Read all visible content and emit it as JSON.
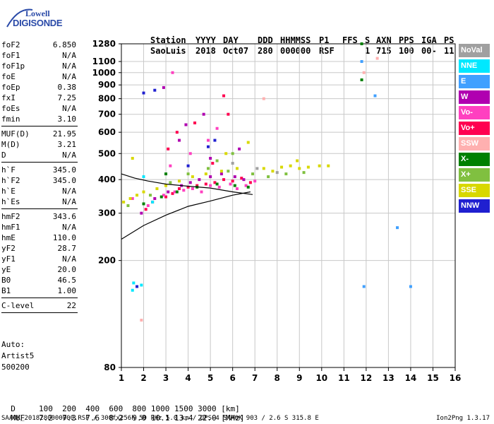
{
  "logo": {
    "line1": "Lowell",
    "line2": "DIGISONDE"
  },
  "header": {
    "col1": [
      "Station",
      "SaoLuis"
    ],
    "col2": [
      "YYYY",
      "2018"
    ],
    "col3": [
      "DAY",
      "Oct07"
    ],
    "col4": [
      "DDD",
      "280"
    ],
    "col5": [
      "HHMMSS",
      "000000"
    ],
    "col6": [
      "P1",
      "RSF"
    ],
    "col7": [
      "FFS",
      ""
    ],
    "col8": [
      "S",
      "1"
    ],
    "col9": [
      "AXN",
      "715"
    ],
    "col10": [
      "PPS",
      "100"
    ],
    "col11": [
      "IGA",
      "00-"
    ],
    "col12": [
      "PS",
      "11"
    ]
  },
  "params": {
    "group1": [
      {
        "name": "foF2",
        "value": "6.850"
      },
      {
        "name": "foF1",
        "value": "N/A"
      },
      {
        "name": "foF1p",
        "value": "N/A"
      },
      {
        "name": "foE",
        "value": "N/A"
      },
      {
        "name": "foEp",
        "value": "0.38"
      },
      {
        "name": "fxI",
        "value": "7.25"
      },
      {
        "name": "foEs",
        "value": "N/A"
      },
      {
        "name": "fmin",
        "value": "3.10"
      }
    ],
    "group2": [
      {
        "name": "MUF(D)",
        "value": "21.95"
      },
      {
        "name": "M(D)",
        "value": "3.21"
      },
      {
        "name": "D",
        "value": "N/A"
      }
    ],
    "group3": [
      {
        "name": "h`F",
        "value": "345.0"
      },
      {
        "name": "h`F2",
        "value": "345.0"
      },
      {
        "name": "h`E",
        "value": "N/A"
      },
      {
        "name": "h`Es",
        "value": "N/A"
      }
    ],
    "group4": [
      {
        "name": "hmF2",
        "value": "343.6"
      },
      {
        "name": "hmF1",
        "value": "N/A"
      },
      {
        "name": "hmE",
        "value": "110.0"
      },
      {
        "name": "yF2",
        "value": "28.7"
      },
      {
        "name": "yF1",
        "value": "N/A"
      },
      {
        "name": "yE",
        "value": "20.0"
      },
      {
        "name": "B0",
        "value": "46.5"
      },
      {
        "name": "B1",
        "value": "1.00"
      }
    ],
    "group5": [
      {
        "name": "C-level",
        "value": "22"
      }
    ]
  },
  "autoscale": {
    "line1": "Auto:",
    "line2": "Artist5",
    "line3": "500200"
  },
  "legend": [
    {
      "label": "NoVal",
      "color": "#a0a0a0"
    },
    {
      "label": "NNE",
      "color": "#00e8ff"
    },
    {
      "label": "E",
      "color": "#40a0ff"
    },
    {
      "label": "W",
      "color": "#b000b0"
    },
    {
      "label": "Vo-",
      "color": "#ff40c0"
    },
    {
      "label": "Vo+",
      "color": "#ff0050"
    },
    {
      "label": "SSW",
      "color": "#ffb0b0"
    },
    {
      "label": "X-",
      "color": "#008000"
    },
    {
      "label": "X+",
      "color": "#80c040"
    },
    {
      "label": "SSE",
      "color": "#d8d800"
    },
    {
      "label": "NNW",
      "color": "#2020d0"
    }
  ],
  "footer": {
    "row_d_label": "D",
    "row_d_values": [
      "100",
      "200",
      "400",
      "600",
      "800",
      "1000",
      "1500",
      "3000",
      "[km]"
    ],
    "row_muf_label": "MUF",
    "row_muf_values": [
      "7.2",
      "7.3",
      "7.6",
      "8.2",
      "9.0",
      "10.1",
      "13.4",
      "22.0",
      "[MHz]"
    ],
    "file_line": "SAA0K_2018280000000.RSF / 300fx256h 50 kHz 5.0 km / DPS-4 SAA0K 903 / 2.6 S 315.8 E",
    "version": "Ion2Png 1.3.17"
  },
  "chart_data": {
    "type": "scatter",
    "title": "",
    "xlabel": "",
    "ylabel": "",
    "x_ticks": [
      1,
      2,
      3,
      4,
      5,
      6,
      7,
      8,
      9,
      10,
      11,
      12,
      13,
      14,
      15,
      16
    ],
    "y_ticks": [
      80,
      200,
      300,
      400,
      500,
      600,
      700,
      800,
      900,
      1000,
      1100,
      1280
    ],
    "xlim": [
      1,
      16
    ],
    "ylim": [
      80,
      1280
    ],
    "grid": true,
    "scale_y": "log",
    "series": [
      {
        "name": "Vo+",
        "points": [
          [
            2.1,
            310
          ],
          [
            2.4,
            330
          ],
          [
            3.0,
            345
          ],
          [
            3.3,
            355
          ],
          [
            3.6,
            370
          ],
          [
            4.0,
            375
          ],
          [
            4.4,
            380
          ],
          [
            4.8,
            385
          ],
          [
            5.2,
            390
          ],
          [
            5.6,
            400
          ],
          [
            6.0,
            395
          ],
          [
            6.4,
            405
          ],
          [
            6.8,
            390
          ],
          [
            3.1,
            520
          ],
          [
            3.5,
            600
          ],
          [
            4.3,
            650
          ],
          [
            5.8,
            700
          ],
          [
            5.6,
            820
          ],
          [
            5.1,
            460
          ]
        ]
      },
      {
        "name": "Vo-",
        "points": [
          [
            1.5,
            340
          ],
          [
            2.2,
            320
          ],
          [
            2.9,
            350
          ],
          [
            3.4,
            360
          ],
          [
            3.8,
            365
          ],
          [
            4.2,
            370
          ],
          [
            4.6,
            360
          ],
          [
            5.0,
            380
          ],
          [
            5.4,
            375
          ],
          [
            5.9,
            385
          ],
          [
            6.2,
            370
          ],
          [
            6.6,
            380
          ],
          [
            7.0,
            395
          ],
          [
            3.2,
            450
          ],
          [
            4.1,
            500
          ],
          [
            4.9,
            560
          ],
          [
            5.3,
            620
          ],
          [
            3.3,
            1000
          ]
        ]
      },
      {
        "name": "W",
        "points": [
          [
            1.9,
            300
          ],
          [
            2.5,
            340
          ],
          [
            3.1,
            360
          ],
          [
            3.7,
            380
          ],
          [
            4.1,
            390
          ],
          [
            4.5,
            400
          ],
          [
            5.0,
            410
          ],
          [
            5.5,
            420
          ],
          [
            6.1,
            410
          ],
          [
            6.5,
            400
          ],
          [
            3.6,
            560
          ],
          [
            4.7,
            700
          ],
          [
            5.0,
            480
          ],
          [
            6.3,
            520
          ],
          [
            2.9,
            880
          ],
          [
            3.9,
            640
          ]
        ]
      },
      {
        "name": "SSE",
        "points": [
          [
            1.1,
            330
          ],
          [
            1.4,
            340
          ],
          [
            1.7,
            350
          ],
          [
            2.0,
            360
          ],
          [
            2.6,
            370
          ],
          [
            3.0,
            380
          ],
          [
            3.6,
            395
          ],
          [
            4.2,
            410
          ],
          [
            4.8,
            420
          ],
          [
            5.5,
            430
          ],
          [
            6.2,
            440
          ],
          [
            7.4,
            440
          ],
          [
            7.8,
            430
          ],
          [
            8.2,
            445
          ],
          [
            8.6,
            450
          ],
          [
            9.0,
            440
          ],
          [
            9.4,
            445
          ],
          [
            9.9,
            450
          ],
          [
            10.3,
            450
          ],
          [
            5.7,
            500
          ],
          [
            6.7,
            550
          ],
          [
            1.5,
            480
          ],
          [
            8.9,
            470
          ]
        ]
      },
      {
        "name": "X+",
        "points": [
          [
            1.3,
            320
          ],
          [
            2.3,
            350
          ],
          [
            3.2,
            390
          ],
          [
            4.0,
            420
          ],
          [
            4.9,
            440
          ],
          [
            5.8,
            430
          ],
          [
            6.9,
            420
          ],
          [
            7.6,
            410
          ],
          [
            8.4,
            420
          ],
          [
            9.2,
            425
          ],
          [
            5.3,
            470
          ],
          [
            6.0,
            500
          ]
        ]
      },
      {
        "name": "X-",
        "points": [
          [
            2.0,
            325
          ],
          [
            2.8,
            345
          ],
          [
            3.5,
            360
          ],
          [
            4.4,
            375
          ],
          [
            5.3,
            385
          ],
          [
            6.1,
            380
          ],
          [
            6.7,
            375
          ],
          [
            11.8,
            1280
          ],
          [
            11.8,
            940
          ],
          [
            3.0,
            420
          ]
        ]
      },
      {
        "name": "NNE",
        "points": [
          [
            1.5,
            155
          ],
          [
            1.7,
            160
          ],
          [
            1.9,
            162
          ],
          [
            1.55,
            165
          ],
          [
            2.0,
            410
          ],
          [
            2.4,
            330
          ]
        ]
      },
      {
        "name": "NNW",
        "points": [
          [
            2.5,
            860
          ],
          [
            2.0,
            840
          ],
          [
            4.0,
            450
          ],
          [
            4.9,
            530
          ],
          [
            5.2,
            560
          ],
          [
            1.7,
            160
          ]
        ]
      },
      {
        "name": "E",
        "points": [
          [
            11.8,
            1100
          ],
          [
            12.4,
            820
          ],
          [
            11.9,
            160
          ],
          [
            13.4,
            265
          ],
          [
            14.0,
            160
          ]
        ]
      },
      {
        "name": "SSW",
        "points": [
          [
            1.9,
            120
          ],
          [
            12.5,
            1130
          ],
          [
            7.4,
            800
          ],
          [
            11.9,
            1000
          ]
        ]
      },
      {
        "name": "NoVal",
        "points": [
          [
            6.0,
            460
          ],
          [
            7.1,
            440
          ],
          [
            8.0,
            425
          ]
        ]
      }
    ],
    "fit_lines": [
      {
        "name": "virtual-height-trace",
        "points": [
          [
            1,
            240
          ],
          [
            2,
            270
          ],
          [
            3,
            295
          ],
          [
            4,
            318
          ],
          [
            5,
            333
          ],
          [
            6,
            350
          ],
          [
            6.8,
            360
          ]
        ]
      },
      {
        "name": "profile-trace",
        "points": [
          [
            1,
            420
          ],
          [
            1.6,
            405
          ],
          [
            2.2,
            395
          ],
          [
            3.0,
            385
          ],
          [
            4.0,
            378
          ],
          [
            5.0,
            372
          ],
          [
            6.0,
            360
          ],
          [
            6.9,
            352
          ]
        ]
      }
    ]
  }
}
